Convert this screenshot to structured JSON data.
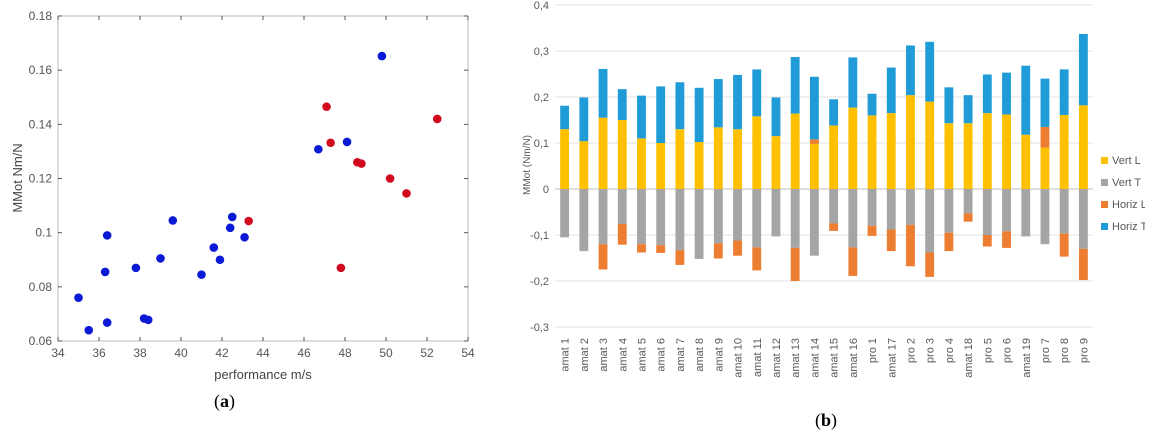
{
  "chart_data": [
    {
      "type": "scatter",
      "panel_label": "a",
      "xlabel": "performance m/s",
      "ylabel": "MMot Nm/N",
      "xlim": [
        34,
        54
      ],
      "ylim": [
        0.06,
        0.18
      ],
      "x_ticks": [
        34,
        36,
        38,
        40,
        42,
        44,
        46,
        48,
        50,
        52,
        54
      ],
      "y_ticks": [
        0.06,
        0.08,
        0.1,
        0.12,
        0.14,
        0.16,
        0.18
      ],
      "x_tick_labels": [
        "34",
        "36",
        "38",
        "40",
        "42",
        "44",
        "46",
        "48",
        "50",
        "52",
        "54"
      ],
      "y_tick_labels": [
        "0.06",
        "0.08",
        "0.1",
        "0.12",
        "0.14",
        "0.16",
        "0.18"
      ],
      "grid": false,
      "colors": {
        "blue": "#0a19d6",
        "red": "#d10a1e"
      },
      "series": [
        {
          "color": "blue",
          "points": [
            [
              35.0,
              0.076
            ],
            [
              35.5,
              0.064
            ],
            [
              36.3,
              0.0855
            ],
            [
              36.4,
              0.099
            ],
            [
              36.4,
              0.0668
            ],
            [
              37.8,
              0.087
            ],
            [
              38.2,
              0.0683
            ],
            [
              38.4,
              0.0678
            ],
            [
              39.0,
              0.0905
            ],
            [
              39.6,
              0.1045
            ],
            [
              41.0,
              0.0845
            ],
            [
              41.6,
              0.0945
            ],
            [
              41.9,
              0.09
            ],
            [
              42.4,
              0.1018
            ],
            [
              42.5,
              0.1058
            ],
            [
              43.1,
              0.0983
            ],
            [
              46.7,
              0.1308
            ],
            [
              48.1,
              0.1335
            ],
            [
              49.8,
              0.1652
            ]
          ]
        },
        {
          "color": "red",
          "points": [
            [
              43.3,
              0.1043
            ],
            [
              47.1,
              0.1465
            ],
            [
              47.3,
              0.1332
            ],
            [
              47.8,
              0.087
            ],
            [
              48.6,
              0.126
            ],
            [
              48.8,
              0.1255
            ],
            [
              50.2,
              0.12
            ],
            [
              51.0,
              0.1145
            ],
            [
              52.5,
              0.142
            ]
          ]
        }
      ]
    },
    {
      "type": "bar",
      "stacked": true,
      "panel_label": "b",
      "ylabel": "MMot (Nm/N)",
      "ylim": [
        -0.3,
        0.4
      ],
      "y_ticks": [
        -0.3,
        -0.2,
        -0.1,
        0,
        0.1,
        0.2,
        0.3,
        0.4
      ],
      "y_tick_labels": [
        "-0,3",
        "-0,2",
        "-0,1",
        "0",
        "0,1",
        "0,2",
        "0,3",
        "0,4"
      ],
      "legend_position": "right",
      "grid": true,
      "categories": [
        "amat 1",
        "amat 2",
        "amat 3",
        "amat 4",
        "amat 5",
        "amat 6",
        "amat 7",
        "amat 8",
        "amat 9",
        "amat 10",
        "amat 11",
        "amat 12",
        "amat 13",
        "amat 14",
        "amat 15",
        "amat 16",
        "pro 1",
        "amat 17",
        "pro 2",
        "pro 3",
        "pro 4",
        "amat 18",
        "pro 5",
        "pro 6",
        "amat 19",
        "pro 7",
        "pro 8",
        "pro 9"
      ],
      "series": [
        {
          "name": "Vert L",
          "color": "#ffc000",
          "values": [
            0.13,
            0.104,
            0.155,
            0.15,
            0.11,
            0.1,
            0.13,
            0.102,
            0.134,
            0.13,
            0.158,
            0.115,
            0.164,
            0.098,
            0.138,
            0.177,
            0.16,
            0.165,
            0.204,
            0.19,
            0.143,
            0.143,
            0.165,
            0.162,
            0.118,
            0.09,
            0.161,
            0.182
          ]
        },
        {
          "name": "Vert T",
          "color": "#a5a5a5",
          "values": [
            -0.105,
            -0.135,
            -0.12,
            -0.076,
            -0.12,
            -0.122,
            -0.133,
            -0.152,
            -0.118,
            -0.112,
            -0.127,
            -0.103,
            -0.128,
            -0.145,
            -0.075,
            -0.127,
            -0.08,
            -0.088,
            -0.078,
            -0.138,
            -0.095,
            -0.053,
            -0.1,
            -0.092,
            -0.103,
            -0.12,
            -0.097,
            -0.13
          ]
        },
        {
          "name": "Horiz L",
          "color": "#ed7d31",
          "values": [
            0.0,
            0.0,
            -0.055,
            -0.045,
            -0.018,
            -0.017,
            -0.032,
            0.0,
            -0.033,
            -0.033,
            -0.05,
            0.0,
            -0.072,
            0.01,
            -0.016,
            -0.062,
            -0.022,
            -0.047,
            -0.09,
            -0.053,
            -0.04,
            -0.018,
            -0.025,
            -0.036,
            0.0,
            0.045,
            -0.05,
            -0.068
          ]
        },
        {
          "name": "Horiz T",
          "color": "#1f9bd7",
          "values": [
            0.051,
            0.095,
            0.106,
            0.067,
            0.093,
            0.123,
            0.102,
            0.118,
            0.105,
            0.118,
            0.102,
            0.084,
            0.123,
            0.136,
            0.057,
            0.109,
            0.047,
            0.099,
            0.108,
            0.13,
            0.078,
            0.061,
            0.084,
            0.091,
            0.15,
            0.105,
            0.099,
            0.155
          ]
        }
      ]
    }
  ]
}
